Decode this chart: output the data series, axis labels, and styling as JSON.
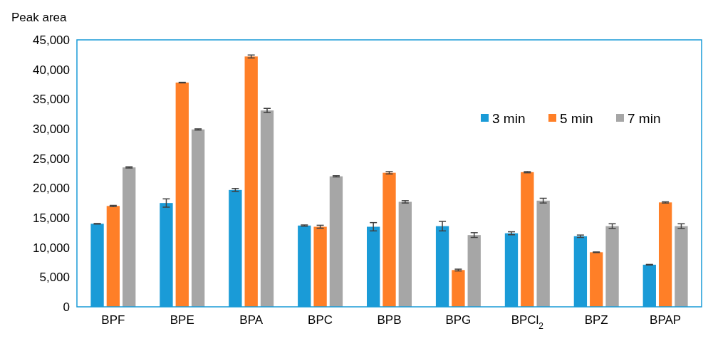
{
  "chart_data": {
    "type": "bar",
    "ylabel": "Peak area",
    "categories": [
      "BPF",
      "BPE",
      "BPA",
      "BPC",
      "BPB",
      "BPG",
      "BPCl$_{2}$",
      "BPZ",
      "BPAP"
    ],
    "series": [
      {
        "name": "3 min",
        "color": "#1a9bd7",
        "values": [
          14000,
          17500,
          19700,
          13700,
          13500,
          13600,
          12400,
          11900,
          7100
        ],
        "errors": [
          50,
          700,
          250,
          100,
          700,
          800,
          250,
          200,
          50
        ]
      },
      {
        "name": "5 min",
        "color": "#ff7f27",
        "values": [
          17000,
          37800,
          42200,
          13500,
          22600,
          6200,
          22700,
          9200,
          17600
        ],
        "errors": [
          100,
          50,
          250,
          250,
          200,
          150,
          100,
          50,
          100
        ]
      },
      {
        "name": "7 min",
        "color": "#a6a6a6",
        "values": [
          23500,
          29900,
          33100,
          22000,
          17700,
          12100,
          17900,
          13600,
          13600
        ],
        "errors": [
          100,
          100,
          350,
          100,
          200,
          400,
          400,
          400,
          400
        ]
      }
    ],
    "ylim": [
      0,
      45000
    ],
    "yticks": [
      {
        "value": 0,
        "label": "0"
      },
      {
        "value": 5000,
        "label": "5,000"
      },
      {
        "value": 10000,
        "label": "10,000"
      },
      {
        "value": 15000,
        "label": "15,000"
      },
      {
        "value": 20000,
        "label": "20,000"
      },
      {
        "value": 25000,
        "label": "25,000"
      },
      {
        "value": 30000,
        "label": "30,000"
      },
      {
        "value": 35000,
        "label": "35,000"
      },
      {
        "value": 40000,
        "label": "40,000"
      },
      {
        "value": 45000,
        "label": "45,000"
      }
    ],
    "grid": false,
    "legend": "top right"
  }
}
